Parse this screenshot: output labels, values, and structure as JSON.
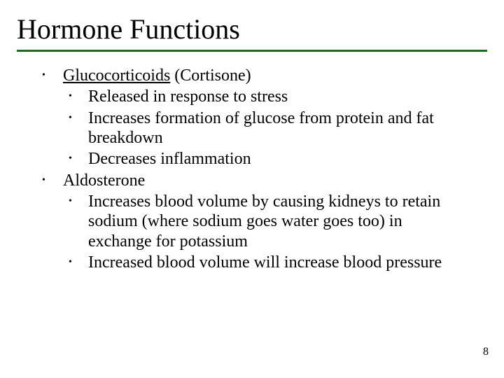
{
  "title": "Hormone Functions",
  "underline_color": "#008000",
  "page_number": "8",
  "body_font_size": 24,
  "title_font_size": 40,
  "items": [
    {
      "heading_underlined": "Glucocorticoids",
      "heading_rest": " (Cortisone)",
      "sub": [
        "Released in response to stress",
        "Increases formation of glucose from protein and fat breakdown",
        "Decreases inflammation"
      ]
    },
    {
      "heading_underlined": "",
      "heading_rest": "Aldosterone",
      "sub": [
        "Increases blood volume by causing kidneys to retain sodium (where sodium goes water goes too) in exchange for potassium",
        "Increased blood volume will increase blood pressure"
      ]
    }
  ]
}
